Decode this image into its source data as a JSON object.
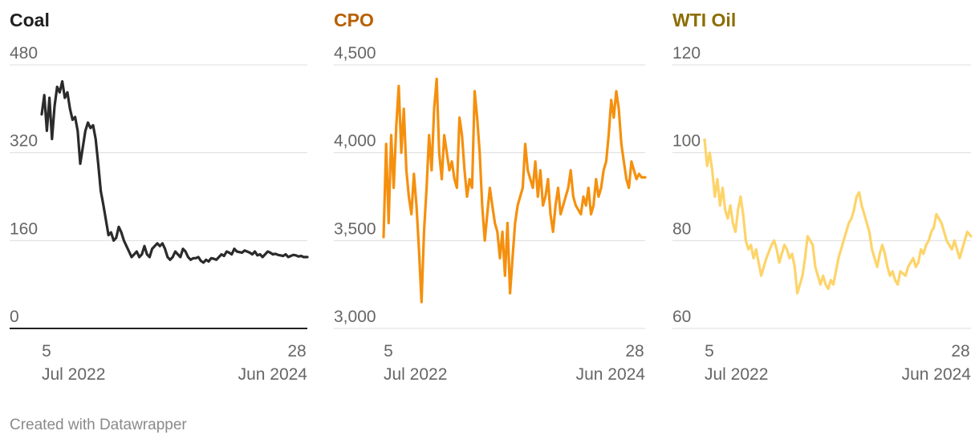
{
  "colors": {
    "grid": "#dddddd",
    "baseline": "#222222",
    "tick_text": "#666666"
  },
  "footer": {
    "credit": "Created with Datawrapper"
  },
  "chart_data": [
    {
      "type": "line",
      "title": "Coal",
      "title_color": "#1f1f1f",
      "line_color": "#2b2b2b",
      "ylim": [
        0,
        480
      ],
      "yticks": [
        "480",
        "320",
        "160",
        "0"
      ],
      "ytick_values": [
        480,
        320,
        160,
        0
      ],
      "xlim": [
        "2022-07-05",
        "2024-06-28"
      ],
      "xticks": [
        {
          "day": "5",
          "label": "Jul 2022"
        },
        {
          "day": "28",
          "label": "Jun 2024"
        }
      ],
      "baseline_at_zero": true,
      "x": [
        "2022-07-05",
        "2022-07-12",
        "2022-07-19",
        "2022-07-26",
        "2022-08-02",
        "2022-08-09",
        "2022-08-16",
        "2022-08-23",
        "2022-08-30",
        "2022-09-06",
        "2022-09-13",
        "2022-09-20",
        "2022-09-27",
        "2022-10-04",
        "2022-10-11",
        "2022-10-18",
        "2022-10-25",
        "2022-11-01",
        "2022-11-08",
        "2022-11-15",
        "2022-11-22",
        "2022-11-29",
        "2022-12-06",
        "2022-12-13",
        "2022-12-20",
        "2023-01-03",
        "2023-01-10",
        "2023-01-17",
        "2023-01-24",
        "2023-01-31",
        "2023-02-07",
        "2023-02-14",
        "2023-02-21",
        "2023-02-28",
        "2023-03-07",
        "2023-03-14",
        "2023-03-21",
        "2023-03-28",
        "2023-04-04",
        "2023-04-11",
        "2023-04-18",
        "2023-04-25",
        "2023-05-02",
        "2023-05-09",
        "2023-05-16",
        "2023-05-23",
        "2023-05-30",
        "2023-06-06",
        "2023-06-13",
        "2023-06-20",
        "2023-06-27",
        "2023-07-04",
        "2023-07-11",
        "2023-07-18",
        "2023-07-25",
        "2023-08-01",
        "2023-08-08",
        "2023-08-15",
        "2023-08-22",
        "2023-08-29",
        "2023-09-05",
        "2023-09-12",
        "2023-09-19",
        "2023-09-26",
        "2023-10-03",
        "2023-10-10",
        "2023-10-17",
        "2023-10-24",
        "2023-10-31",
        "2023-11-07",
        "2023-11-14",
        "2023-11-21",
        "2023-11-28",
        "2023-12-05",
        "2023-12-12",
        "2023-12-19",
        "2024-01-02",
        "2024-01-09",
        "2024-01-16",
        "2024-01-23",
        "2024-01-30",
        "2024-02-06",
        "2024-02-13",
        "2024-02-20",
        "2024-02-27",
        "2024-03-05",
        "2024-03-12",
        "2024-03-19",
        "2024-03-26",
        "2024-04-02",
        "2024-04-09",
        "2024-04-16",
        "2024-04-23",
        "2024-04-30",
        "2024-05-07",
        "2024-05-14",
        "2024-05-21",
        "2024-05-28",
        "2024-06-04",
        "2024-06-11",
        "2024-06-18",
        "2024-06-28"
      ],
      "values": [
        390,
        425,
        360,
        420,
        345,
        405,
        440,
        430,
        450,
        420,
        430,
        400,
        380,
        385,
        360,
        300,
        330,
        360,
        375,
        365,
        370,
        345,
        300,
        250,
        225,
        170,
        175,
        160,
        165,
        185,
        175,
        160,
        150,
        140,
        130,
        135,
        140,
        130,
        135,
        150,
        135,
        130,
        145,
        150,
        155,
        150,
        155,
        145,
        130,
        125,
        130,
        140,
        135,
        130,
        145,
        140,
        130,
        125,
        128,
        128,
        130,
        123,
        120,
        125,
        122,
        128,
        127,
        125,
        130,
        135,
        132,
        140,
        138,
        135,
        145,
        140,
        138,
        142,
        140,
        138,
        135,
        140,
        133,
        135,
        130,
        135,
        140,
        138,
        135,
        136,
        134,
        133,
        132,
        135,
        130,
        132,
        134,
        133,
        131,
        132,
        130,
        130
      ]
    },
    {
      "type": "line",
      "title": "CPO",
      "title_color": "#b86000",
      "line_color": "#f5900e",
      "ylim": [
        3000,
        4500
      ],
      "yticks": [
        "4,500",
        "4,000",
        "3,500",
        "3,000"
      ],
      "ytick_values": [
        4500,
        4000,
        3500,
        3000
      ],
      "xlim": [
        "2022-07-05",
        "2024-06-28"
      ],
      "xticks": [
        {
          "day": "5",
          "label": "Jul 2022"
        },
        {
          "day": "28",
          "label": "Jun 2024"
        }
      ],
      "baseline_at_zero": false,
      "x": [
        "2022-07-05",
        "2022-07-12",
        "2022-07-19",
        "2022-07-26",
        "2022-08-02",
        "2022-08-09",
        "2022-08-16",
        "2022-08-23",
        "2022-08-30",
        "2022-09-06",
        "2022-09-13",
        "2022-09-20",
        "2022-09-27",
        "2022-10-04",
        "2022-10-11",
        "2022-10-18",
        "2022-10-25",
        "2022-11-01",
        "2022-11-08",
        "2022-11-15",
        "2022-11-22",
        "2022-11-29",
        "2022-12-06",
        "2022-12-13",
        "2022-12-20",
        "2023-01-03",
        "2023-01-10",
        "2023-01-17",
        "2023-01-24",
        "2023-01-31",
        "2023-02-07",
        "2023-02-14",
        "2023-02-21",
        "2023-02-28",
        "2023-03-07",
        "2023-03-14",
        "2023-03-21",
        "2023-03-28",
        "2023-04-04",
        "2023-04-11",
        "2023-04-18",
        "2023-04-25",
        "2023-05-02",
        "2023-05-09",
        "2023-05-16",
        "2023-05-23",
        "2023-05-30",
        "2023-06-06",
        "2023-06-13",
        "2023-06-20",
        "2023-06-27",
        "2023-07-04",
        "2023-07-11",
        "2023-07-18",
        "2023-07-25",
        "2023-08-01",
        "2023-08-08",
        "2023-08-15",
        "2023-08-22",
        "2023-08-29",
        "2023-09-05",
        "2023-09-12",
        "2023-09-19",
        "2023-09-26",
        "2023-10-03",
        "2023-10-10",
        "2023-10-17",
        "2023-10-24",
        "2023-10-31",
        "2023-11-07",
        "2023-11-14",
        "2023-11-21",
        "2023-11-28",
        "2023-12-05",
        "2023-12-12",
        "2023-12-19",
        "2024-01-02",
        "2024-01-09",
        "2024-01-16",
        "2024-01-23",
        "2024-01-30",
        "2024-02-06",
        "2024-02-13",
        "2024-02-20",
        "2024-02-27",
        "2024-03-05",
        "2024-03-12",
        "2024-03-19",
        "2024-03-26",
        "2024-04-02",
        "2024-04-09",
        "2024-04-16",
        "2024-04-23",
        "2024-04-30",
        "2024-05-07",
        "2024-05-14",
        "2024-05-21",
        "2024-05-28",
        "2024-06-04",
        "2024-06-11",
        "2024-06-18",
        "2024-06-28"
      ],
      "values": [
        3520,
        4050,
        3600,
        4100,
        3800,
        4150,
        4380,
        4000,
        4250,
        3900,
        3750,
        3650,
        3880,
        3700,
        3450,
        3150,
        3550,
        3800,
        4100,
        3900,
        4250,
        4420,
        4000,
        3850,
        4100,
        3900,
        3950,
        3850,
        3800,
        4200,
        4100,
        3900,
        3750,
        3850,
        3800,
        4350,
        4200,
        4000,
        3700,
        3500,
        3650,
        3800,
        3700,
        3600,
        3550,
        3400,
        3550,
        3300,
        3600,
        3200,
        3400,
        3600,
        3700,
        3750,
        3800,
        4050,
        3900,
        3850,
        3800,
        3950,
        3750,
        3900,
        3700,
        3750,
        3850,
        3650,
        3550,
        3700,
        3800,
        3650,
        3700,
        3750,
        3800,
        3900,
        3750,
        3700,
        3650,
        3750,
        3700,
        3800,
        3650,
        3700,
        3850,
        3750,
        3800,
        3900,
        3950,
        4100,
        4300,
        4200,
        4350,
        4250,
        4050,
        3950,
        3850,
        3800,
        3950,
        3900,
        3850,
        3880,
        3860,
        3860
      ]
    },
    {
      "type": "line",
      "title": "WTI Oil",
      "title_color": "#8c6d00",
      "line_color": "#fdd46a",
      "ylim": [
        60,
        120
      ],
      "yticks": [
        "120",
        "100",
        "80",
        "60"
      ],
      "ytick_values": [
        120,
        100,
        80,
        60
      ],
      "xlim": [
        "2022-07-05",
        "2024-06-28"
      ],
      "xticks": [
        {
          "day": "5",
          "label": "Jul 2022"
        },
        {
          "day": "28",
          "label": "Jun 2024"
        }
      ],
      "baseline_at_zero": false,
      "x": [
        "2022-07-05",
        "2022-07-12",
        "2022-07-19",
        "2022-07-26",
        "2022-08-02",
        "2022-08-09",
        "2022-08-16",
        "2022-08-23",
        "2022-08-30",
        "2022-09-06",
        "2022-09-13",
        "2022-09-20",
        "2022-09-27",
        "2022-10-04",
        "2022-10-11",
        "2022-10-18",
        "2022-10-25",
        "2022-11-01",
        "2022-11-08",
        "2022-11-15",
        "2022-11-22",
        "2022-11-29",
        "2022-12-06",
        "2022-12-13",
        "2022-12-20",
        "2023-01-03",
        "2023-01-10",
        "2023-01-17",
        "2023-01-24",
        "2023-01-31",
        "2023-02-07",
        "2023-02-14",
        "2023-02-21",
        "2023-02-28",
        "2023-03-07",
        "2023-03-14",
        "2023-03-21",
        "2023-03-28",
        "2023-04-04",
        "2023-04-11",
        "2023-04-18",
        "2023-04-25",
        "2023-05-02",
        "2023-05-09",
        "2023-05-16",
        "2023-05-23",
        "2023-05-30",
        "2023-06-06",
        "2023-06-13",
        "2023-06-20",
        "2023-06-27",
        "2023-07-04",
        "2023-07-11",
        "2023-07-18",
        "2023-07-25",
        "2023-08-01",
        "2023-08-08",
        "2023-08-15",
        "2023-08-22",
        "2023-08-29",
        "2023-09-05",
        "2023-09-12",
        "2023-09-19",
        "2023-09-26",
        "2023-10-03",
        "2023-10-10",
        "2023-10-17",
        "2023-10-24",
        "2023-10-31",
        "2023-11-07",
        "2023-11-14",
        "2023-11-21",
        "2023-11-28",
        "2023-12-05",
        "2023-12-12",
        "2023-12-19",
        "2024-01-02",
        "2024-01-09",
        "2024-01-16",
        "2024-01-23",
        "2024-01-30",
        "2024-02-06",
        "2024-02-13",
        "2024-02-20",
        "2024-02-27",
        "2024-03-05",
        "2024-03-12",
        "2024-03-19",
        "2024-03-26",
        "2024-04-02",
        "2024-04-09",
        "2024-04-16",
        "2024-04-23",
        "2024-04-30",
        "2024-05-07",
        "2024-05-14",
        "2024-05-21",
        "2024-05-28",
        "2024-06-04",
        "2024-06-11",
        "2024-06-18",
        "2024-06-28"
      ],
      "values": [
        103,
        97,
        100,
        96,
        90,
        94,
        88,
        92,
        87,
        85,
        88,
        84,
        82,
        87,
        90,
        86,
        80,
        78,
        79,
        76,
        78,
        75,
        72,
        74,
        76,
        79,
        80,
        78,
        75,
        77,
        79,
        78,
        76,
        77,
        74,
        68,
        70,
        72,
        76,
        81,
        80,
        79,
        74,
        72,
        70,
        72,
        70,
        69,
        71,
        70,
        73,
        76,
        78,
        80,
        82,
        84,
        85,
        87,
        90,
        91,
        88,
        86,
        84,
        82,
        78,
        76,
        74,
        77,
        79,
        77,
        74,
        72,
        73,
        71,
        70,
        73,
        72,
        74,
        75,
        76,
        74,
        75,
        78,
        77,
        79,
        80,
        82,
        83,
        86,
        85,
        84,
        82,
        80,
        79,
        78,
        80,
        78,
        76,
        78,
        80,
        82,
        81
      ]
    }
  ]
}
